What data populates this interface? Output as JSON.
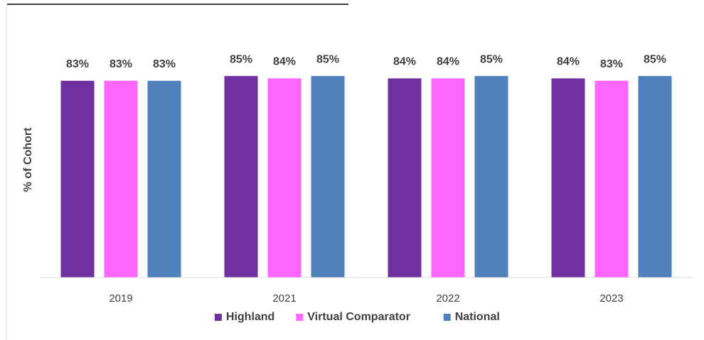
{
  "chart_data": {
    "type": "bar",
    "y_label": "% of Cohort",
    "categories": [
      "2019",
      "2021",
      "2022",
      "2023"
    ],
    "series": [
      {
        "name": "Highland",
        "color": "#7030a0",
        "values": [
          83,
          85,
          84,
          84
        ],
        "value_labels": [
          "83%",
          "85%",
          "84%",
          "84%"
        ]
      },
      {
        "name": "Virtual Comparator",
        "color": "#ff66ff",
        "values": [
          83,
          84,
          84,
          83
        ],
        "value_labels": [
          "83%",
          "84%",
          "84%",
          "83%"
        ]
      },
      {
        "name": "National",
        "color": "#4f81bd",
        "values": [
          83,
          85,
          85,
          85
        ],
        "value_labels": [
          "83%",
          "85%",
          "85%",
          "85%"
        ]
      }
    ],
    "ylim": [
      0,
      100
    ],
    "legend": "bottom"
  }
}
